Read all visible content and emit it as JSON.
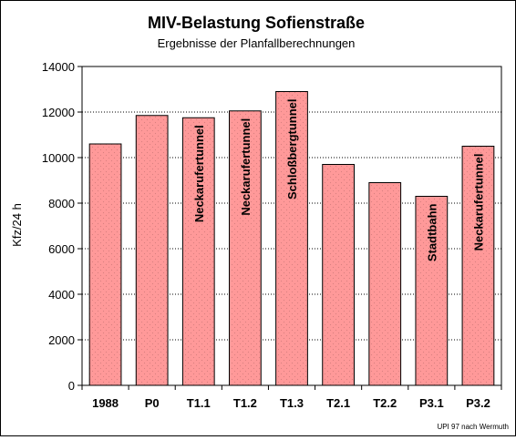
{
  "chart_data": {
    "type": "bar",
    "title": "MIV-Belastung Sofienstraße",
    "subtitle": "Ergebnisse der Planfallberechnungen",
    "ylabel": "Kfz/24 h",
    "xlabel": "",
    "ylim": [
      0,
      14000
    ],
    "yticks": [
      0,
      2000,
      4000,
      6000,
      8000,
      10000,
      12000,
      14000
    ],
    "grid": true,
    "categories": [
      "1988",
      "P0",
      "T1.1",
      "T1.2",
      "T1.3",
      "T2.1",
      "T2.2",
      "P3.1",
      "P3.2"
    ],
    "values": [
      10600,
      11850,
      11750,
      12050,
      12900,
      9700,
      8900,
      8300,
      10500
    ],
    "bar_labels": [
      "",
      "",
      "Neckarufertunnel",
      "Neckarufertunnel",
      "Schloßbergtunnel",
      "",
      "",
      "Stadtbahn",
      "Neckarufertunnel"
    ],
    "source": "UPI 97 nach Wermuth",
    "colors": {
      "bar_fill": "#ff9999",
      "plot_bg": "#ffffff",
      "grid": "#000000"
    }
  }
}
